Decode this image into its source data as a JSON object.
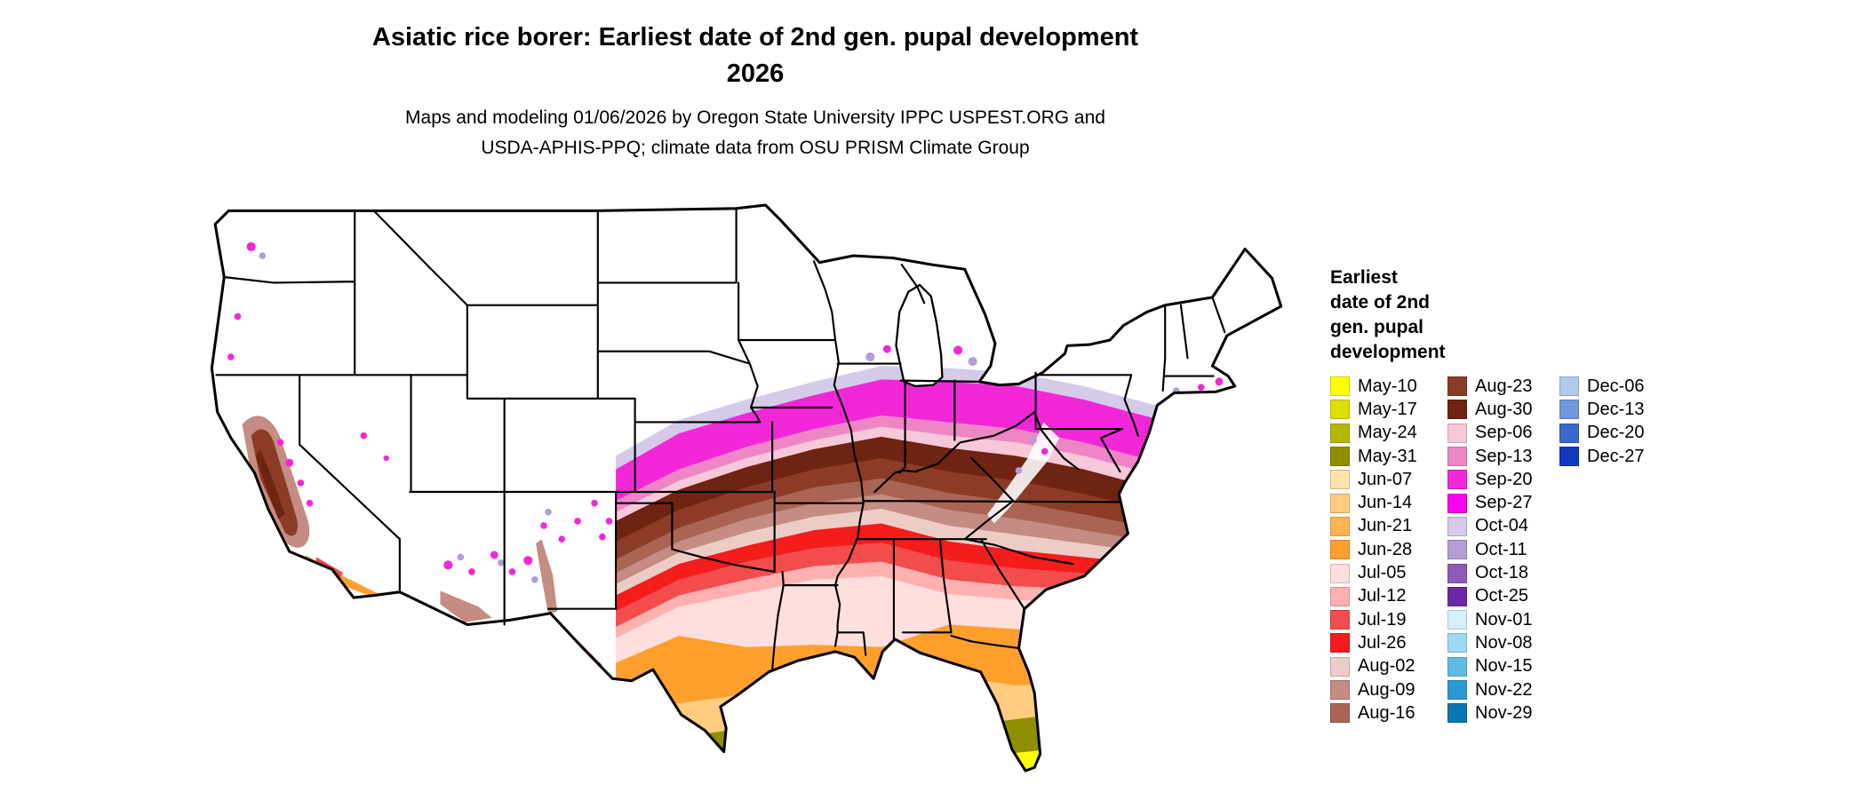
{
  "header": {
    "title_line1": "Asiatic rice borer: Earliest date of 2nd gen. pupal development",
    "title_line2": "2026",
    "subtitle_line1": "Maps and modeling 01/06/2026 by Oregon State University IPPC USPEST.ORG and",
    "subtitle_line2": "USDA-APHIS-PPQ; climate data from OSU PRISM Climate Group"
  },
  "legend": {
    "title_lines": [
      "Earliest",
      "date of 2nd",
      "gen. pupal",
      "development"
    ],
    "columns": [
      [
        {
          "label": "May-10",
          "color": "#ffff00"
        },
        {
          "label": "May-17",
          "color": "#dede00"
        },
        {
          "label": "May-24",
          "color": "#b6b600"
        },
        {
          "label": "May-31",
          "color": "#8e8e00"
        },
        {
          "label": "Jun-07",
          "color": "#ffe2a8"
        },
        {
          "label": "Jun-14",
          "color": "#ffcc80"
        },
        {
          "label": "Jun-21",
          "color": "#ffb554"
        },
        {
          "label": "Jun-28",
          "color": "#ffa02e"
        },
        {
          "label": "Jul-05",
          "color": "#ffdede"
        },
        {
          "label": "Jul-12",
          "color": "#ffb0b0"
        },
        {
          "label": "Jul-19",
          "color": "#f24c4c"
        },
        {
          "label": "Jul-26",
          "color": "#f51c1c"
        },
        {
          "label": "Aug-02",
          "color": "#eeccc6"
        },
        {
          "label": "Aug-09",
          "color": "#c48c82"
        },
        {
          "label": "Aug-16",
          "color": "#aa6454"
        }
      ],
      [
        {
          "label": "Aug-23",
          "color": "#8c3c26"
        },
        {
          "label": "Aug-30",
          "color": "#6e2410"
        },
        {
          "label": "Sep-06",
          "color": "#f6c8da"
        },
        {
          "label": "Sep-13",
          "color": "#ee86c6"
        },
        {
          "label": "Sep-20",
          "color": "#f228d8"
        },
        {
          "label": "Sep-27",
          "color": "#fc00f0"
        },
        {
          "label": "Oct-04",
          "color": "#d6cae9"
        },
        {
          "label": "Oct-11",
          "color": "#b49cd4"
        },
        {
          "label": "Oct-18",
          "color": "#8d5ab8"
        },
        {
          "label": "Oct-25",
          "color": "#6c28a4"
        },
        {
          "label": "Nov-01",
          "color": "#d4f0fa"
        },
        {
          "label": "Nov-08",
          "color": "#9ed9f2"
        },
        {
          "label": "Nov-15",
          "color": "#5ebce4"
        },
        {
          "label": "Nov-22",
          "color": "#2a98d4"
        },
        {
          "label": "Nov-29",
          "color": "#0877b6"
        }
      ],
      [
        {
          "label": "Dec-06",
          "color": "#b0c9ec"
        },
        {
          "label": "Dec-13",
          "color": "#7098dc"
        },
        {
          "label": "Dec-20",
          "color": "#3c68cc"
        },
        {
          "label": "Dec-27",
          "color": "#1238c0"
        }
      ]
    ]
  },
  "map": {
    "region": "Conterminous United States",
    "no_data_color": "#ffffff",
    "border_color": "#000000",
    "band_order_south_to_north": [
      "May-10",
      "May-31",
      "Jun-14",
      "Jun-28",
      "Jul-05",
      "Jul-12",
      "Jul-19",
      "Jul-26",
      "Aug-02",
      "Aug-09",
      "Aug-16",
      "Aug-23",
      "Aug-30",
      "Sep-06",
      "Sep-13",
      "Sep-20",
      "Oct-04"
    ]
  }
}
